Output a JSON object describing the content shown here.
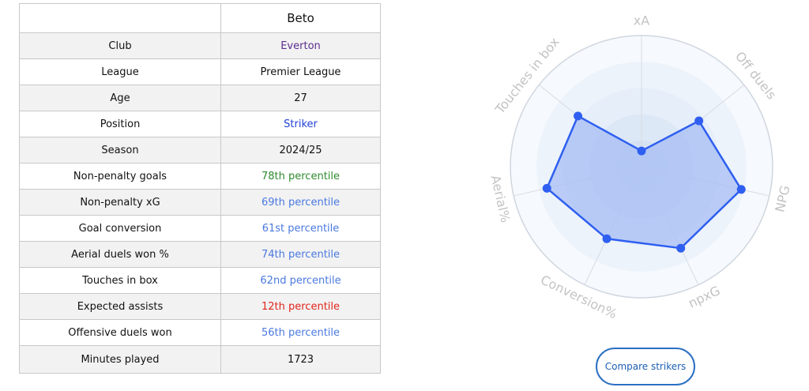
{
  "player": {
    "name": "Beto"
  },
  "rows": [
    {
      "label": "Club",
      "value": "Everton",
      "color": "#5b2d8e"
    },
    {
      "label": "League",
      "value": "Premier League",
      "color": "#111111"
    },
    {
      "label": "Age",
      "value": "27",
      "color": "#111111"
    },
    {
      "label": "Position",
      "value": "Striker",
      "color": "#1f3fd6"
    },
    {
      "label": "Season",
      "value": "2024/25",
      "color": "#111111"
    },
    {
      "label": "Non-penalty goals",
      "value": "78th percentile",
      "color": "#2e8b2e"
    },
    {
      "label": "Non-penalty xG",
      "value": "69th percentile",
      "color": "#4a79e0"
    },
    {
      "label": "Goal conversion",
      "value": "61st percentile",
      "color": "#4a79e0"
    },
    {
      "label": "Aerial duels won %",
      "value": "74th percentile",
      "color": "#4a79e0"
    },
    {
      "label": "Touches in box",
      "value": "62nd percentile",
      "color": "#4a79e0"
    },
    {
      "label": "Expected assists",
      "value": "12th percentile",
      "color": "#e0251b"
    },
    {
      "label": "Offensive duels won",
      "value": "56th percentile",
      "color": "#4a79e0"
    },
    {
      "label": "Minutes played",
      "value": "1723",
      "color": "#111111"
    }
  ],
  "chart_data": {
    "type": "radar",
    "axes": [
      "xA",
      "Off duels",
      "NPG",
      "npxG",
      "Conversion%",
      "Aerial%",
      "Touches in box"
    ],
    "values": [
      12,
      56,
      78,
      69,
      61,
      74,
      62
    ],
    "range": [
      0,
      100
    ],
    "rings": 5,
    "fill_color": "#a7bdf4",
    "line_color": "#2f5ff0"
  },
  "button": {
    "label": "Compare strikers"
  }
}
